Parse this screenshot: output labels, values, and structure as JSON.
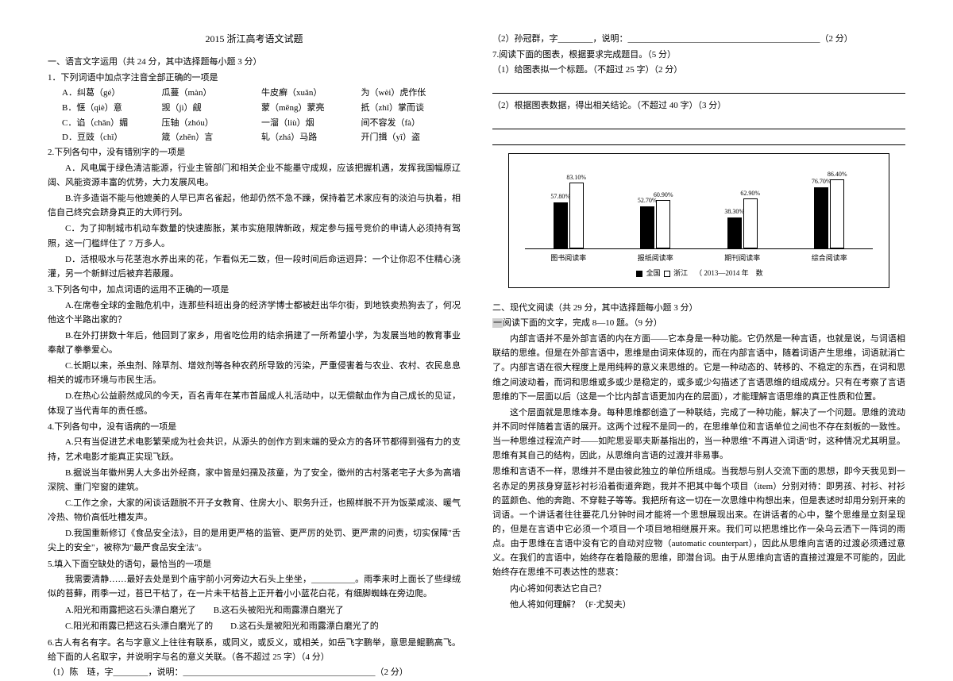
{
  "title": "2015 浙江高考语文试题",
  "left": {
    "section1_head": "一、语言文字运用（共 24 分，其中选择题每小题 3 分）",
    "q1": "1．下列词语中加点字注音全部正确的一项是",
    "q1_rows": [
      {
        "a": "A．纠葛（gé）",
        "b": "瓜蔓（màn）",
        "c": "牛皮癣（xuǎn）",
        "d": "为（wèi）虎作伥"
      },
      {
        "a": "B．惬（qiè）意",
        "b": "觊（jì）觎",
        "c": "蒙（mēng）蒙亮",
        "d": "扺（zhǐ）掌而谈"
      },
      {
        "a": "C．谄（chǎn）媚",
        "b": "压轴（zhóu）",
        "c": "一溜（liù）烟",
        "d": "间不容发（fà）"
      },
      {
        "a": "D．豆豉（chǐ）",
        "b": "箴（zhēn）言",
        "c": "轧（zhá）马路",
        "d": "开门揖（yī）盗"
      }
    ],
    "q2": "2.下列各句中，没有错别字的一项是",
    "q2_opts": [
      "A．风电属于绿色清洁能源，行业主管部门和相关企业不能墨守成规，应该把握机遇，发挥我国幅原辽阔、风能资源丰富的优势，大力发展风电。",
      "B.许多造诣不能与他媲美的人早已声名雀起，他却仍然不急不躁，保持着艺术家应有的淡泊与执着，相信自己终究会跻身真正的大师行列。",
      "C．为了抑制城市机动车数量的快速膨胀，某市实施限牌新政，规定参与摇号竞价的申请人必须持有驾照，这一门槛绊住了 7 万多人。",
      "D．活根吸水与花茎泡水养出来的花，乍看似无二致，但一段时间后命运迥异：一个让你忍不住精心浇灌，另一个新鲜过后被弃若蔽履。"
    ],
    "q3": "3.下列各句中，加点词语的运用不正确的一项是",
    "q3_opts": [
      "A.在席卷全球的金融危机中，连那些科班出身的经济学博士都被赶出华尔街，到地铁卖热狗去了，何况他这个半路出家的？",
      "B.在外打拼数十年后，他回到了家乡，用省吃俭用的结余捐建了一所希望小学，为发展当地的教育事业奉献了拳拳爱心。",
      "C.长期以来，杀虫剂、除草剂、增效剂等各种农药所导致的污染，严重侵害着与农业、农村、农民息息相关的城市环境与市民生活。",
      "D.在热心公益蔚然成风的今天，百名青年在某市首届成人礼活动中，以无偿献血作为自己成长的见证，体现了当代青年的责任感。"
    ],
    "q4": "4.下列各句中，没有语病的一项是",
    "q4_opts": [
      "A.只有当促进艺术电影繁荣成为社会共识，从源头的创作方到末端的受众方的各环节都得到强有力的支持，艺术电影才能真正实现飞跃。",
      "B.据说当年徽州男人大多出外经商，家中皆是妇孺及孩童，为了安全，徽州的古村落老宅子大多为高墙深院、重门窄窗的建筑。",
      "C.工作之余，大家的闲谈话题脱不开子女教育、住房大小、职务升迁，也照样脱不开为饭菜咸淡、暖气冷热、物价高低吐槽发声。",
      "D.我国重新修订《食品安全法》，目的是用更严格的监管、更严厉的处罚、更严肃的问责，切实保障\"舌尖上的安全\"，被称为\"最严食品安全法\"。"
    ],
    "q5": "5.填入下面空缺处的语句，最恰当的一项是",
    "q5_body": "我需要清静……最好去处是到个庙宇前小河旁边大石头上坐坐，__________。雨季来时上面长了些绿绒似的苔藓，雨季一过，苔已干枯了，在一片未干枯苔上正开着小小蓝花白花，有细脚蜘蛛在旁边爬。",
    "q5_opts": [
      "A.阳光和雨露把这石头漂白磨光了　　B.这石头被阳光和雨露漂白磨光了",
      "C.阳光和雨露已把这石头漂白磨光了的　　D.这石头是被阳光和雨露漂白磨光了的"
    ],
    "q6": "6.古人有名有字。名与字意义上往往有联系，或同义，或反义，或相关，如岳飞字鹏举，意思是鲲鹏高飞。给下面的人名取字，并说明字与名的意义关联。（各不超过 25 字）（4 分）",
    "q6_1": "（1）陈　琏，字________，说明：____________________________________________（2 分）"
  },
  "right": {
    "q6_2": "（2）孙冠群，字________，说明：____________________________________________（2 分）",
    "q7": "7.阅读下面的图表，根据要求完成题目。（5 分）",
    "q7_1": "（1）给图表拟一个标题。（不超过 25 字）（2 分）",
    "q7_2": "（2）根据图表数据，得出相关结论。（不超过 40 字）（3 分）",
    "chart": {
      "type": "bar",
      "categories": [
        "图书阅读率",
        "报纸阅读率",
        "期刊阅读率",
        "综合阅读率"
      ],
      "series": [
        {
          "name": "全国",
          "color": "#000000",
          "values": [
            57.8,
            52.7,
            38.3,
            76.7
          ]
        },
        {
          "name": "浙江",
          "color": "#ffffff",
          "values": [
            83.1,
            60.9,
            62.9,
            86.4
          ]
        }
      ],
      "value_labels": [
        [
          "57.80%",
          "83.10%"
        ],
        [
          "52.70%",
          "60.90%"
        ],
        [
          "38.30%",
          "62.90%"
        ],
        [
          "76.70%",
          "86.40%"
        ]
      ],
      "ymax": 100,
      "footnote": "（ 2013—2014 年　数"
    },
    "section2_head": "二、现代文阅读（共 29 分，其中选择题每小题 3 分）",
    "reading_intro": "阅读下面的文字，完成 8—10 题。（9 分）",
    "body_paras": [
      "内部言语并不是外部言语的内在方面——它本身是一种功能。它仍然是一种言语，也就是说，与词语相联结的思维。但是在外部言语中，思维是由词来体现的，而在内部言语中，随着词语产生思维，词语就消亡了。内部言语在很大程度上是用纯粹的意义来思维的。它是一种动态的、转移的、不稳定的东西，在词和思维之间波动着，而词和思维或多或少是稳定的，或多或少勾描述了言语思维的组成成分。只有在考察了言语思维的下一层面以后（这是一个比内部言语更加内在的层面），才能理解言语思维的真正性质和位置。",
      "这个层面就是思维本身。每种思维都创造了一种联结，完成了一种功能，解决了一个问题。思维的流动并不同时伴随着言语的展开。这两个过程不是同一的，在思维单位和言语单位之间也不存在刻板的一致性。当一种思维过程流产时——如陀思妥耶夫斯基指出的，当一种思维\"不再进入词语\"时，这种情况尤其明显。思维有其自己的结构，因此，从思维向言语的过渡并非易事。",
      "思维和言语不一样，思维并不是由彼此独立的单位所组成。当我想与别人交流下面的思想，即今天我见到一名赤足的男孩身穿蓝衫衬衫沿着街道奔跑，我并不把其中每个项目（item）分别对待：即男孩、衬衫、衬衫的蓝颜色、他的奔跑、不穿鞋子等等。我把所有这一切在一次思维中构想出来，但是表述时却用分别开来的词语。一个讲话者往往要花几分钟时间才能将一个思想展现出来。在讲话者的心中，整个思维是立刻呈现的，但是在言语中它必须一个项目一个项目地相继展开来。我们可以把思维比作一朵乌云洒下一阵词的雨点。由于思维在言语中没有它的自动对应物（automatic counterpart），因此从思维向言语的过渡必须通过意义。在我们的言语中，始终存在着隐蔽的思维，即潜台词。由于从思维向言语的直接过渡是不可能的，因此始终存在思维不可表达性的悲哀：",
      "内心将如何表达它自己？",
      "他人将如何理解？（F·尤契夫）"
    ]
  }
}
